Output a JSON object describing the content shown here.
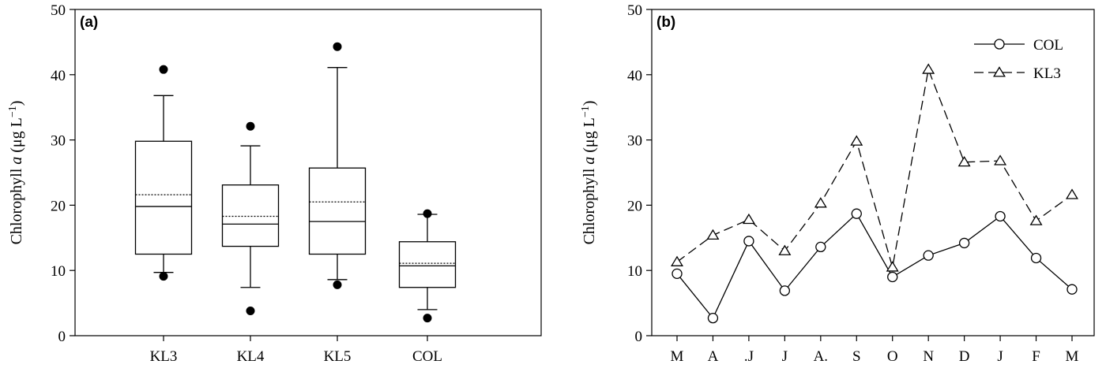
{
  "chart_data": [
    {
      "type": "box",
      "panel_label": "(a)",
      "ylabel": "Chlorophyll a (μg L⁻¹)",
      "ylabel_parts": {
        "pre": "Chlorophyll ",
        "italic": "a",
        "post": " (μg L",
        "sup": "−1",
        "close": ")"
      },
      "ylim": [
        0,
        50
      ],
      "yticks": [
        "0",
        "10",
        "20",
        "30",
        "40",
        "50"
      ],
      "categories": [
        "KL3",
        "KL4",
        "KL5",
        "COL"
      ],
      "boxes": [
        {
          "name": "KL3",
          "whisker_low": 9.7,
          "q1": 12.5,
          "median": 19.8,
          "mean": 21.6,
          "q3": 29.8,
          "whisker_high": 36.8,
          "outliers": [
            9.1,
            40.8
          ]
        },
        {
          "name": "KL4",
          "whisker_low": 7.4,
          "q1": 13.7,
          "median": 17.1,
          "mean": 18.3,
          "q3": 23.1,
          "whisker_high": 29.1,
          "outliers": [
            3.8,
            32.1
          ]
        },
        {
          "name": "KL5",
          "whisker_low": 8.6,
          "q1": 12.5,
          "median": 17.5,
          "mean": 20.5,
          "q3": 25.7,
          "whisker_high": 41.1,
          "outliers": [
            7.8,
            44.3
          ]
        },
        {
          "name": "COL",
          "whisker_low": 4.0,
          "q1": 7.4,
          "median": 10.7,
          "mean": 11.1,
          "q3": 14.4,
          "whisker_high": 18.6,
          "outliers": [
            2.7,
            18.7
          ]
        }
      ]
    },
    {
      "type": "line",
      "panel_label": "(b)",
      "ylabel": "Chlorophyll a (μg L⁻¹)",
      "ylabel_parts": {
        "pre": "Chlorophyll ",
        "italic": "a",
        "post": " (μg L",
        "sup": "−1",
        "close": ")"
      },
      "ylim": [
        0,
        50
      ],
      "yticks": [
        "0",
        "10",
        "20",
        "30",
        "40",
        "50"
      ],
      "categories": [
        "M",
        "A",
        ".J",
        "J",
        "A.",
        "S",
        "O",
        "N",
        "D",
        "J",
        "F",
        "M"
      ],
      "legend_position": "top-right",
      "series": [
        {
          "name": "COL",
          "marker": "circle",
          "line": "solid",
          "values": [
            9.5,
            2.7,
            14.5,
            6.9,
            13.6,
            18.7,
            9.0,
            12.3,
            14.2,
            18.3,
            11.9,
            7.1
          ]
        },
        {
          "name": "KL3",
          "marker": "triangle",
          "line": "dashed",
          "values": [
            11.3,
            15.4,
            17.8,
            13.0,
            20.3,
            29.8,
            10.5,
            40.8,
            26.6,
            26.8,
            17.6,
            21.6
          ]
        }
      ]
    }
  ]
}
